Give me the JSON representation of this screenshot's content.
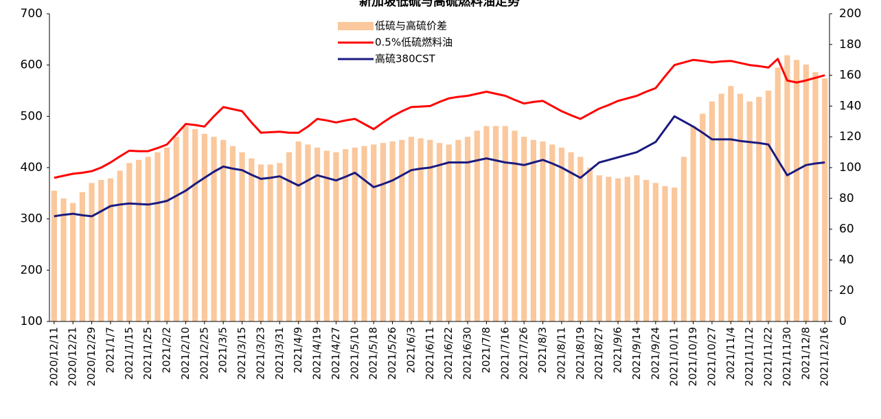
{
  "chart_data": {
    "type": "bar_line",
    "title": "新加坡低硫与高硫燃料油走势",
    "categories": [
      "2020/12/11",
      null,
      "2020/12/21",
      null,
      "2020/12/29",
      null,
      "2021/1/7",
      null,
      "2021/1/15",
      null,
      "2021/1/25",
      null,
      "2021/2/2",
      null,
      "2021/2/10",
      null,
      "2021/2/25",
      null,
      "2021/3/5",
      null,
      "2021/3/15",
      null,
      "2021/3/23",
      null,
      "2021/3/31",
      null,
      "2021/4/9",
      null,
      "2021/4/19",
      null,
      "2021/4/27",
      null,
      "2021/5/10",
      null,
      "2021/5/18",
      null,
      "2021/5/26",
      null,
      "2021/6/3",
      null,
      "2021/6/11",
      null,
      "2021/6/22",
      null,
      "2021/6/30",
      null,
      "2021/7/8",
      null,
      "2021/7/16",
      null,
      "2021/7/26",
      null,
      "2021/8/3",
      null,
      "2021/8/11",
      null,
      "2021/8/19",
      null,
      "2021/8/27",
      null,
      "2021/9/6",
      null,
      "2021/9/14",
      null,
      "2021/9/24",
      null,
      "2021/10/11",
      null,
      "2021/10/19",
      null,
      "2021/10/27",
      null,
      "2021/11/4",
      null,
      "2021/11/12",
      null,
      "2021/11/22",
      null,
      "2021/11/30",
      null,
      "2021/12/8",
      null,
      "2021/12/16"
    ],
    "series": [
      {
        "name": "低硫与高硫价差",
        "kind": "bar",
        "axis": "y2",
        "color": "#fac89c",
        "values": [
          85,
          80,
          77,
          84,
          90,
          92,
          93,
          98,
          103,
          105,
          107,
          110,
          113,
          120,
          127,
          125,
          122,
          120,
          118,
          114,
          110,
          106,
          102,
          102,
          103,
          110,
          117,
          115,
          113,
          111,
          110,
          112,
          113,
          114,
          115,
          116,
          117,
          118,
          120,
          119,
          118,
          116,
          115,
          118,
          120,
          124,
          127,
          127,
          127,
          124,
          120,
          118,
          117,
          115,
          113,
          110,
          107,
          100,
          95,
          94,
          93,
          94,
          95,
          92,
          90,
          88,
          87,
          107,
          127,
          135,
          143,
          148,
          153,
          148,
          143,
          146,
          150,
          165,
          173,
          170,
          167,
          162,
          158
        ]
      },
      {
        "name": "0.5%低硫燃料油",
        "kind": "line",
        "color": "#ff0000",
        "values": [
          380,
          384,
          388,
          390,
          393,
          400,
          410,
          422,
          433,
          432,
          432,
          438,
          445,
          465,
          485,
          483,
          480,
          500,
          518,
          514,
          510,
          488,
          468,
          469,
          470,
          468,
          468,
          480,
          495,
          492,
          488,
          492,
          495,
          485,
          475,
          488,
          500,
          510,
          518,
          519,
          520,
          528,
          535,
          538,
          540,
          544,
          548,
          544,
          540,
          532,
          525,
          528,
          530,
          520,
          510,
          502,
          495,
          505,
          515,
          522,
          530,
          535,
          540,
          548,
          555,
          578,
          600,
          605,
          610,
          608,
          605,
          607,
          608,
          604,
          600,
          598,
          595,
          612,
          570,
          566,
          570,
          575,
          580
        ]
      },
      {
        "name": "高硫380CST",
        "kind": "line",
        "color": "#1a1a80",
        "values": [
          305,
          308,
          310,
          307,
          305,
          315,
          325,
          328,
          330,
          329,
          328,
          331,
          335,
          345,
          355,
          368,
          380,
          392,
          402,
          398,
          395,
          386,
          378,
          380,
          383,
          374,
          365,
          375,
          385,
          380,
          375,
          382,
          390,
          376,
          362,
          368,
          375,
          385,
          395,
          398,
          400,
          405,
          410,
          410,
          410,
          414,
          418,
          414,
          410,
          408,
          405,
          410,
          415,
          408,
          400,
          390,
          380,
          395,
          410,
          415,
          420,
          425,
          430,
          440,
          450,
          475,
          500,
          490,
          480,
          468,
          455,
          455,
          455,
          452,
          450,
          448,
          445,
          415,
          385,
          395,
          405,
          408,
          410
        ]
      }
    ],
    "ylim": [
      100,
      700
    ],
    "yticks": [
      100,
      200,
      300,
      400,
      500,
      600,
      700
    ],
    "y2lim": [
      0,
      200
    ],
    "y2ticks": [
      0,
      20,
      40,
      60,
      80,
      100,
      120,
      140,
      160,
      180,
      200
    ]
  }
}
